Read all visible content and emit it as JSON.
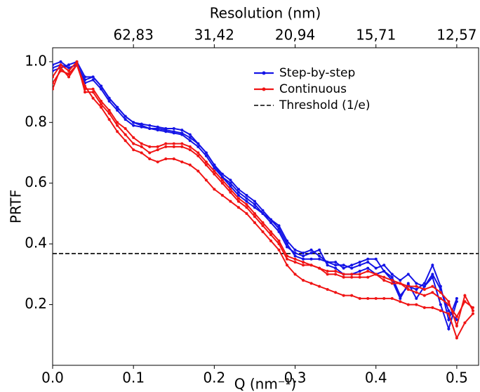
{
  "chart_data": {
    "type": "line",
    "title": "Resolution (nm)",
    "x_label": "Q (nm⁻¹)",
    "y_label": "PRTF",
    "xlim": [
      0,
      0.527
    ],
    "ylim": [
      0,
      1.046
    ],
    "xticks": [
      {
        "value": 0,
        "label": "0.0"
      },
      0.1,
      0.2,
      0.3,
      0.4,
      0.5
    ],
    "yticks": [
      {
        "value": 0.2,
        "label": "0.2"
      },
      {
        "value": 0.4,
        "label": "0.4"
      },
      {
        "value": 0.6,
        "label": "0.6"
      },
      {
        "value": 0.8,
        "label": "0.8"
      },
      {
        "value": 1.0,
        "label": "1.0"
      }
    ],
    "x2ticks": [
      {
        "value": 0.1,
        "label": "62,83"
      },
      {
        "value": 0.2,
        "label": "31,42"
      },
      {
        "value": 0.3,
        "label": "20,94"
      },
      {
        "value": 0.4,
        "label": "15,71"
      },
      {
        "value": 0.5,
        "label": "12,57"
      }
    ],
    "legend": "upper right",
    "series": [
      {
        "name": "Step-by-step",
        "color": "#1414e6",
        "x": [
          0,
          0.01,
          0.02,
          0.03,
          0.04,
          0.05,
          0.06,
          0.07,
          0.08,
          0.09,
          0.1,
          0.11,
          0.12,
          0.13,
          0.14,
          0.15,
          0.16,
          0.17,
          0.18,
          0.19,
          0.2,
          0.21,
          0.22,
          0.23,
          0.24,
          0.25,
          0.26,
          0.27,
          0.28,
          0.29,
          0.3,
          0.31,
          0.32,
          0.33,
          0.34,
          0.35,
          0.36,
          0.37,
          0.38,
          0.39,
          0.4,
          0.41,
          0.42,
          0.43,
          0.44,
          0.45,
          0.46,
          0.47,
          0.48,
          0.49,
          0.5
        ],
        "lines": [
          [
            0.98,
            0.99,
            0.98,
            0.99,
            0.94,
            0.95,
            0.92,
            0.88,
            0.85,
            0.82,
            0.8,
            0.795,
            0.79,
            0.785,
            0.78,
            0.78,
            0.775,
            0.76,
            0.73,
            0.7,
            0.66,
            0.62,
            0.6,
            0.57,
            0.55,
            0.53,
            0.5,
            0.48,
            0.45,
            0.4,
            0.36,
            0.35,
            0.35,
            0.35,
            0.34,
            0.33,
            0.33,
            0.32,
            0.33,
            0.34,
            0.32,
            0.33,
            0.3,
            0.28,
            0.3,
            0.27,
            0.26,
            0.3,
            0.25,
            0.18,
            0.15
          ],
          [
            0.99,
            1.0,
            0.98,
            0.99,
            0.93,
            0.94,
            0.91,
            0.87,
            0.84,
            0.81,
            0.79,
            0.785,
            0.78,
            0.775,
            0.77,
            0.765,
            0.76,
            0.74,
            0.72,
            0.69,
            0.65,
            0.62,
            0.59,
            0.56,
            0.54,
            0.52,
            0.5,
            0.47,
            0.44,
            0.39,
            0.37,
            0.36,
            0.37,
            0.38,
            0.33,
            0.32,
            0.3,
            0.3,
            0.31,
            0.32,
            0.3,
            0.31,
            0.29,
            0.23,
            0.26,
            0.25,
            0.27,
            0.33,
            0.26,
            0.15,
            0.22
          ],
          [
            0.97,
            0.98,
            0.99,
            1.0,
            0.95,
            0.95,
            0.92,
            0.88,
            0.85,
            0.82,
            0.8,
            0.79,
            0.78,
            0.78,
            0.775,
            0.77,
            0.765,
            0.75,
            0.73,
            0.7,
            0.66,
            0.63,
            0.61,
            0.58,
            0.56,
            0.54,
            0.51,
            0.48,
            0.46,
            0.41,
            0.38,
            0.37,
            0.38,
            0.36,
            0.34,
            0.34,
            0.32,
            0.33,
            0.34,
            0.35,
            0.35,
            0.31,
            0.28,
            0.22,
            0.27,
            0.22,
            0.26,
            0.29,
            0.2,
            0.12,
            0.21
          ]
        ]
      },
      {
        "name": "Continuous",
        "color": "#f01414",
        "x": [
          0,
          0.01,
          0.02,
          0.03,
          0.04,
          0.05,
          0.06,
          0.07,
          0.08,
          0.09,
          0.1,
          0.11,
          0.12,
          0.13,
          0.14,
          0.15,
          0.16,
          0.17,
          0.18,
          0.19,
          0.2,
          0.21,
          0.22,
          0.23,
          0.24,
          0.25,
          0.26,
          0.27,
          0.28,
          0.29,
          0.3,
          0.31,
          0.32,
          0.33,
          0.34,
          0.35,
          0.36,
          0.37,
          0.38,
          0.39,
          0.4,
          0.41,
          0.42,
          0.43,
          0.44,
          0.45,
          0.46,
          0.47,
          0.48,
          0.49,
          0.5,
          0.51,
          0.52
        ],
        "lines": [
          [
            0.95,
            0.99,
            0.97,
            1.0,
            0.9,
            0.9,
            0.86,
            0.83,
            0.79,
            0.76,
            0.73,
            0.72,
            0.7,
            0.71,
            0.72,
            0.72,
            0.72,
            0.71,
            0.69,
            0.66,
            0.63,
            0.6,
            0.57,
            0.54,
            0.52,
            0.49,
            0.46,
            0.43,
            0.4,
            0.35,
            0.34,
            0.33,
            0.33,
            0.32,
            0.3,
            0.3,
            0.29,
            0.29,
            0.29,
            0.29,
            0.3,
            0.28,
            0.27,
            0.27,
            0.25,
            0.24,
            0.23,
            0.24,
            0.22,
            0.2,
            0.16,
            0.21,
            0.19
          ],
          [
            0.91,
            0.98,
            0.95,
            0.99,
            0.91,
            0.91,
            0.87,
            0.84,
            0.8,
            0.78,
            0.75,
            0.73,
            0.72,
            0.72,
            0.73,
            0.73,
            0.73,
            0.72,
            0.7,
            0.67,
            0.64,
            0.61,
            0.58,
            0.55,
            0.53,
            0.5,
            0.47,
            0.44,
            0.41,
            0.36,
            0.35,
            0.34,
            0.33,
            0.32,
            0.31,
            0.31,
            0.3,
            0.3,
            0.3,
            0.31,
            0.3,
            0.29,
            0.28,
            0.27,
            0.26,
            0.26,
            0.25,
            0.26,
            0.24,
            0.21,
            0.13,
            0.23,
            0.18
          ],
          [
            0.93,
            0.97,
            0.96,
            0.99,
            0.92,
            0.88,
            0.85,
            0.81,
            0.77,
            0.74,
            0.71,
            0.7,
            0.68,
            0.67,
            0.68,
            0.68,
            0.67,
            0.66,
            0.64,
            0.61,
            0.58,
            0.56,
            0.54,
            0.52,
            0.5,
            0.47,
            0.44,
            0.41,
            0.38,
            0.33,
            0.3,
            0.28,
            0.27,
            0.26,
            0.25,
            0.24,
            0.23,
            0.23,
            0.22,
            0.22,
            0.22,
            0.22,
            0.22,
            0.21,
            0.2,
            0.2,
            0.19,
            0.19,
            0.18,
            0.17,
            0.09,
            0.14,
            0.17
          ]
        ]
      }
    ],
    "threshold": {
      "name": "Threshold (1/e)",
      "value": 0.368,
      "color": "#000000"
    }
  }
}
